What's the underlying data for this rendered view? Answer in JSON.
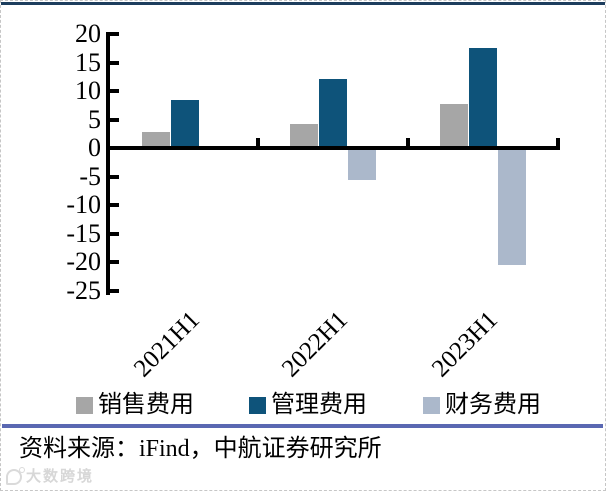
{
  "chart_data": {
    "type": "bar",
    "title": "",
    "xlabel": "",
    "ylabel": "",
    "categories": [
      "2021H1",
      "2022H1",
      "2023H1"
    ],
    "series": [
      {
        "name": "销售费用",
        "color": "#a6a6a6",
        "values": [
          2.8,
          4.3,
          7.7
        ]
      },
      {
        "name": "管理费用",
        "color": "#0e537a",
        "values": [
          8.4,
          12.2,
          17.6
        ]
      },
      {
        "name": "财务费用",
        "color": "#abb8cb",
        "values": [
          0,
          -5.6,
          -20.4
        ]
      }
    ],
    "ylim": [
      -25,
      20
    ],
    "yticks": [
      20,
      15,
      10,
      5,
      0,
      -5,
      -10,
      -15,
      -20,
      -25
    ],
    "grid": false,
    "legend_position": "bottom"
  },
  "source_line": {
    "text": "资料来源：iFind，中航证券研究所"
  },
  "watermark": {
    "text": "大数跨境"
  },
  "colors": {
    "top_line": "#1d3e5e",
    "divider": "#5a68b2",
    "axis": "#000000",
    "series_sales_gray": "#a6a6a6",
    "series_admin_blue": "#0e537a",
    "series_finance_lightblue": "#abb8cb",
    "watermark_gray": "#d7d7d7"
  }
}
